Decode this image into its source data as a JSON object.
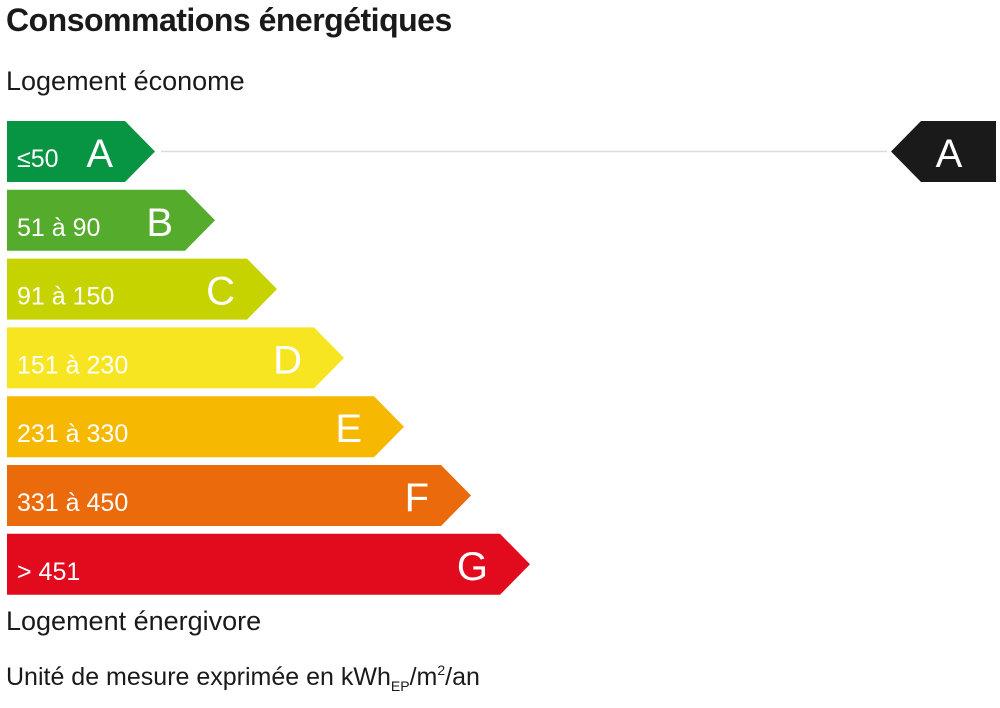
{
  "header": {
    "title": "Consommations énergétiques",
    "label_top": "Logement économe",
    "label_bottom": "Logement énergivore"
  },
  "unit": {
    "prefix": "Unité de mesure exprimée en kWh",
    "sub": "EP",
    "mid": "/m",
    "sup": "2",
    "suffix": "/an"
  },
  "chart_data": {
    "type": "bar",
    "categories": [
      "A",
      "B",
      "C",
      "D",
      "E",
      "F",
      "G"
    ],
    "ranges": [
      "≤50",
      "51 à 90",
      "91 à 150",
      "151 à 230",
      "231 à 330",
      "331 à 450",
      "> 451"
    ],
    "colors": [
      "#079443",
      "#55ab2b",
      "#c7d300",
      "#f8e522",
      "#f6b800",
      "#eb6a0b",
      "#e20a1d"
    ],
    "current": {
      "class": "A",
      "color": "#1a1a1a"
    }
  }
}
